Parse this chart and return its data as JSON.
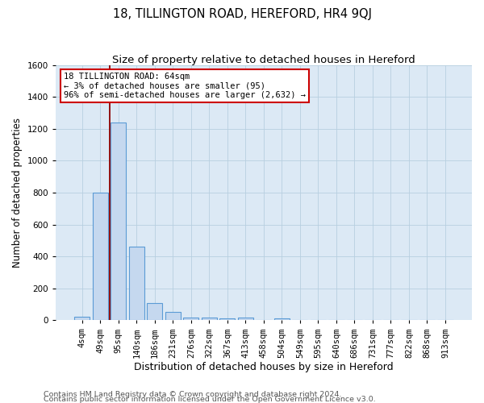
{
  "title": "18, TILLINGTON ROAD, HEREFORD, HR4 9QJ",
  "subtitle": "Size of property relative to detached houses in Hereford",
  "xlabel": "Distribution of detached houses by size in Hereford",
  "ylabel": "Number of detached properties",
  "categories": [
    "4sqm",
    "49sqm",
    "95sqm",
    "140sqm",
    "186sqm",
    "231sqm",
    "276sqm",
    "322sqm",
    "367sqm",
    "413sqm",
    "458sqm",
    "504sqm",
    "549sqm",
    "595sqm",
    "640sqm",
    "686sqm",
    "731sqm",
    "777sqm",
    "822sqm",
    "868sqm",
    "913sqm"
  ],
  "values": [
    20,
    800,
    1240,
    460,
    110,
    55,
    15,
    15,
    10,
    15,
    0,
    10,
    0,
    0,
    0,
    0,
    0,
    0,
    0,
    0,
    0
  ],
  "bar_color": "#c5d8ef",
  "bar_edge_color": "#5b9bd5",
  "annotation_box_text": "18 TILLINGTON ROAD: 64sqm\n← 3% of detached houses are smaller (95)\n96% of semi-detached houses are larger (2,632) →",
  "annotation_box_color": "#cc0000",
  "red_line_x": 1.5,
  "ylim": [
    0,
    1600
  ],
  "yticks": [
    0,
    200,
    400,
    600,
    800,
    1000,
    1200,
    1400,
    1600
  ],
  "grid_color": "#b8cfe0",
  "background_color": "#dce9f5",
  "footer_line1": "Contains HM Land Registry data © Crown copyright and database right 2024.",
  "footer_line2": "Contains public sector information licensed under the Open Government Licence v3.0.",
  "title_fontsize": 10.5,
  "subtitle_fontsize": 9.5,
  "xlabel_fontsize": 9,
  "ylabel_fontsize": 8.5,
  "tick_fontsize": 7.5,
  "annotation_fontsize": 7.5,
  "footer_fontsize": 6.8
}
